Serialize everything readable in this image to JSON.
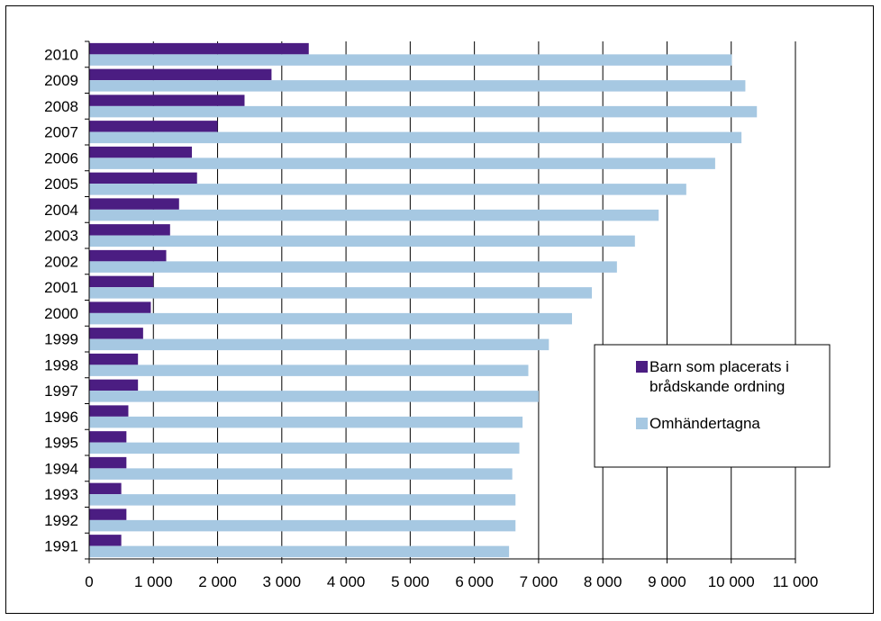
{
  "chart_data": {
    "type": "bar",
    "orientation": "horizontal",
    "categories": [
      "1991",
      "1992",
      "1993",
      "1994",
      "1995",
      "1996",
      "1997",
      "1998",
      "1999",
      "2000",
      "2001",
      "2002",
      "2003",
      "2004",
      "2005",
      "2006",
      "2007",
      "2008",
      "2009",
      "2010"
    ],
    "series": [
      {
        "name": "Barn som placerats i brådskande ordning",
        "color": "#4b1d82",
        "values": [
          500,
          580,
          500,
          580,
          580,
          610,
          760,
          760,
          840,
          960,
          1000,
          1200,
          1260,
          1400,
          1680,
          1600,
          2000,
          2420,
          2840,
          3420
        ]
      },
      {
        "name": "Omhändertagna",
        "color": "#a6c8e2",
        "values": [
          6540,
          6640,
          6640,
          6590,
          6700,
          6750,
          7000,
          6840,
          7160,
          7520,
          7830,
          8220,
          8500,
          8870,
          9300,
          9750,
          10160,
          10400,
          10220,
          10010
        ]
      }
    ],
    "x_ticks": [
      "0",
      "1 000",
      "2 000",
      "3 000",
      "4 000",
      "5 000",
      "6 000",
      "7 000",
      "8 000",
      "9 000",
      "10 000",
      "11 000"
    ],
    "xlim": [
      0,
      11000
    ],
    "grid": true,
    "legend_position": "right",
    "legend": {
      "items": [
        {
          "lines": [
            "Barn som placerats i",
            "brådskande ordning"
          ],
          "color": "#4b1d82"
        },
        {
          "lines": [
            "Omhändertagna"
          ],
          "color": "#a6c8e2"
        }
      ]
    }
  }
}
